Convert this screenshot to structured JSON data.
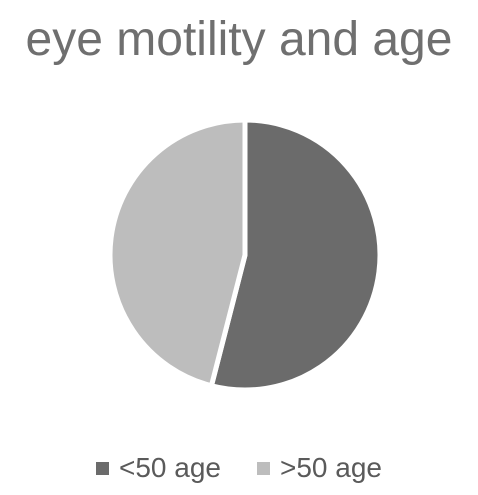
{
  "chart_data": {
    "type": "pie",
    "title": "eye motility and age",
    "categories": [
      "<50 age",
      ">50 age"
    ],
    "values": [
      54,
      46
    ],
    "colors": [
      "#6b6b6b",
      "#bdbdbd"
    ],
    "legend": "bottom",
    "start_angle_deg": 0,
    "direction": "clockwise"
  }
}
